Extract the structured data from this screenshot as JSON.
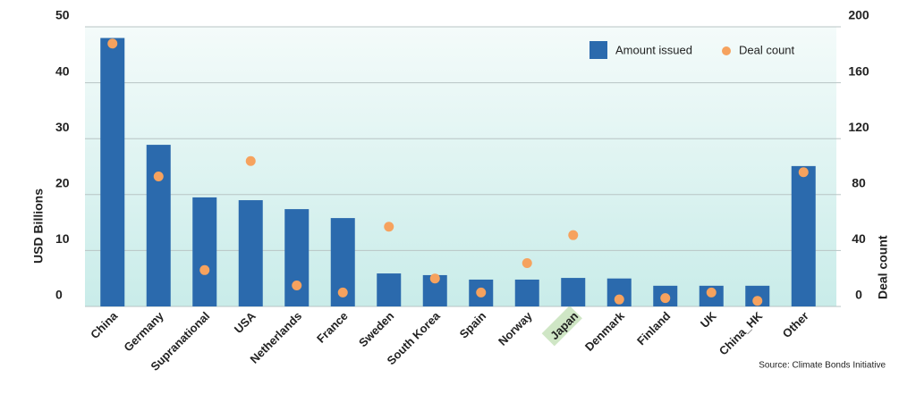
{
  "chart_data": {
    "type": "bar_dot",
    "categories": [
      "China",
      "Germany",
      "Supranational",
      "USA",
      "Netherlands",
      "France",
      "Sweden",
      "South Korea",
      "Spain",
      "Norway",
      "Japan",
      "Denmark",
      "Finland",
      "UK",
      "China_HK",
      "Other"
    ],
    "series": [
      {
        "name": "Amount issued",
        "color": "#2b6aad",
        "values": [
          48,
          28.9,
          19.5,
          19,
          17.4,
          15.8,
          5.9,
          5.6,
          4.8,
          4.8,
          5.1,
          5.0,
          3.7,
          3.7,
          3.7,
          25.1
        ]
      },
      {
        "name": "Deal count",
        "color": "#f6a25e",
        "axis": "y2",
        "values": [
          188,
          93,
          26,
          104,
          15,
          10,
          57,
          20,
          10,
          31,
          51,
          5,
          6,
          10,
          4,
          96
        ]
      }
    ],
    "ylim": [
      0,
      50
    ],
    "yticks": [
      0,
      10,
      20,
      30,
      40,
      50
    ],
    "y2lim": [
      0,
      200
    ],
    "y2ticks": [
      0,
      40,
      80,
      120,
      160,
      200
    ],
    "ylabel": "USD Billions",
    "y2label": "Deal count",
    "source": "Source: Climate Bonds Initiative",
    "grid": true
  }
}
